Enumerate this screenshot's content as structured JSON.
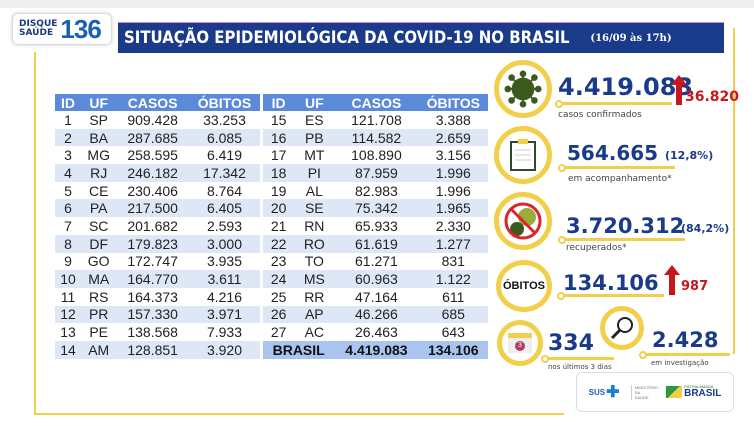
{
  "logo": {
    "line1": "DISQUE",
    "line2": "SAÚDE",
    "number": "136"
  },
  "header": {
    "title": "SITUAÇÃO EPIDEMIOLÓGICA DA COVID-19 NO BRASIL",
    "date": "(16/09 às 17h)"
  },
  "table": {
    "columns": [
      "ID",
      "UF",
      "CASOS",
      "ÓBITOS"
    ],
    "left_rows": [
      [
        "1",
        "SP",
        "909.428",
        "33.253"
      ],
      [
        "2",
        "BA",
        "287.685",
        "6.085"
      ],
      [
        "3",
        "MG",
        "258.595",
        "6.419"
      ],
      [
        "4",
        "RJ",
        "246.182",
        "17.342"
      ],
      [
        "5",
        "CE",
        "230.406",
        "8.764"
      ],
      [
        "6",
        "PA",
        "217.500",
        "6.405"
      ],
      [
        "7",
        "SC",
        "201.682",
        "2.593"
      ],
      [
        "8",
        "DF",
        "179.823",
        "3.000"
      ],
      [
        "9",
        "GO",
        "172.747",
        "3.935"
      ],
      [
        "10",
        "MA",
        "164.770",
        "3.611"
      ],
      [
        "11",
        "RS",
        "164.373",
        "4.216"
      ],
      [
        "12",
        "PR",
        "157.330",
        "3.971"
      ],
      [
        "13",
        "PE",
        "138.568",
        "7.933"
      ],
      [
        "14",
        "AM",
        "128.851",
        "3.920"
      ]
    ],
    "right_rows": [
      [
        "15",
        "ES",
        "121.708",
        "3.388"
      ],
      [
        "16",
        "PB",
        "114.582",
        "2.659"
      ],
      [
        "17",
        "MT",
        "108.890",
        "3.156"
      ],
      [
        "18",
        "PI",
        "87.959",
        "1.996"
      ],
      [
        "19",
        "AL",
        "82.983",
        "1.996"
      ],
      [
        "20",
        "SE",
        "75.342",
        "1.965"
      ],
      [
        "21",
        "RN",
        "65.933",
        "2.330"
      ],
      [
        "22",
        "RO",
        "61.619",
        "1.277"
      ],
      [
        "23",
        "TO",
        "61.271",
        "831"
      ],
      [
        "24",
        "MS",
        "60.963",
        "1.122"
      ],
      [
        "25",
        "RR",
        "47.164",
        "611"
      ],
      [
        "26",
        "AP",
        "46.266",
        "685"
      ],
      [
        "27",
        "AC",
        "26.463",
        "643"
      ]
    ],
    "total": {
      "label": "BRASIL",
      "casos": "4.419.083",
      "obitos": "134.106"
    }
  },
  "stats": {
    "confirmed": {
      "value": "4.419.083",
      "delta": "36.820",
      "label": "casos confirmados",
      "icon": "virus-icon"
    },
    "monitoring": {
      "value": "564.665",
      "pct": "(12,8%)",
      "label": "em acompanhamento*",
      "icon": "clipboard-icon"
    },
    "recovered": {
      "value": "3.720.312",
      "pct": "(84,2%)",
      "label": "recuperados*",
      "icon": "no-virus-icon"
    },
    "deaths": {
      "badge": "ÓBITOS",
      "value": "134.106",
      "delta": "987"
    },
    "last3": {
      "value": "334",
      "label": "nos últimos 3 dias",
      "calendar": "3"
    },
    "investigation": {
      "value": "2.428",
      "label": "em investigação",
      "icon": "magnifier-icon"
    }
  },
  "footer": {
    "sus": "SUS",
    "ministry": "MINISTÉRIO DA SAÚDE",
    "patria": "PÁTRIA AMADA",
    "brasil": "BRASIL"
  },
  "colors": {
    "header": "#1a3b8a",
    "accent": "#f2cf4a",
    "table_header": "#5b8ad8",
    "increase": "#c8161d",
    "virus": "#3d5a1e"
  }
}
